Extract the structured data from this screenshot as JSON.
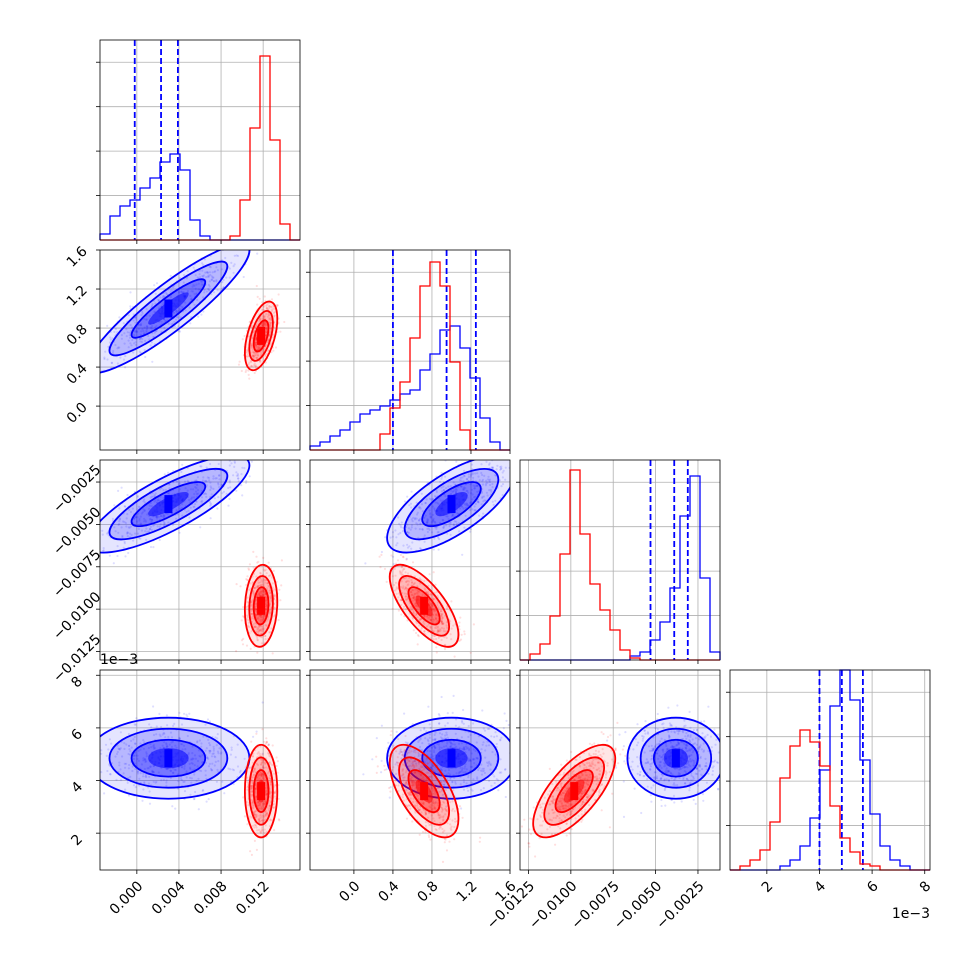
{
  "chart_data": {
    "type": "corner",
    "grid": true,
    "series": [
      {
        "color": "#0000ff",
        "quantiles": [
          [
            -0.0002,
            0.0023,
            0.0039
          ],
          [
            0.4,
            0.95,
            1.25
          ],
          [
            -0.0053,
            -0.0039,
            -0.0031
          ],
          [
            4.0,
            4.85,
            5.65
          ]
        ],
        "means": [
          0.003,
          1.0,
          -0.0038,
          4.85
        ],
        "sds": [
          0.0035,
          0.3,
          0.0013,
          0.7
        ],
        "corr": [
          [
            1,
            0.9,
            0.8,
            0
          ],
          [
            0.9,
            1,
            0.7,
            0
          ],
          [
            0.8,
            0.7,
            1,
            0
          ],
          [
            0,
            0,
            0,
            1
          ]
        ],
        "hist": [
          [
            0.03,
            0.12,
            0.17,
            0.2,
            0.26,
            0.31,
            0.39,
            0.43,
            0.35,
            0.1,
            0.02,
            0.0,
            0.0,
            0.0,
            0.0,
            0.0,
            0.0,
            0.0,
            0.0,
            0.0
          ],
          [
            0.02,
            0.04,
            0.07,
            0.1,
            0.14,
            0.18,
            0.2,
            0.22,
            0.25,
            0.28,
            0.3,
            0.4,
            0.48,
            0.6,
            0.62,
            0.51,
            0.36,
            0.16,
            0.04,
            0.0
          ],
          [
            0.0,
            0.0,
            0.0,
            0.0,
            0.0,
            0.0,
            0.0,
            0.0,
            0.0,
            0.0,
            0.0,
            0.02,
            0.04,
            0.1,
            0.19,
            0.36,
            0.72,
            0.92,
            0.41,
            0.04
          ],
          [
            0.0,
            0.0,
            0.0,
            0.0,
            0.0,
            0.02,
            0.05,
            0.12,
            0.26,
            0.5,
            0.82,
            1.0,
            0.85,
            0.55,
            0.28,
            0.12,
            0.05,
            0.02,
            0.0,
            0.0
          ]
        ]
      },
      {
        "color": "#ff0000",
        "quantiles": null,
        "means": [
          0.0118,
          0.72,
          -0.0098,
          3.6
        ],
        "sds": [
          0.0007,
          0.16,
          0.0011,
          0.8
        ],
        "corr": [
          [
            1,
            0.5,
            0.1,
            0
          ],
          [
            0.5,
            1,
            -0.7,
            -0.6
          ],
          [
            0.1,
            -0.7,
            1,
            0.7
          ],
          [
            0,
            -0.6,
            0.7,
            1
          ]
        ],
        "hist": [
          [
            0.0,
            0.0,
            0.0,
            0.0,
            0.0,
            0.0,
            0.0,
            0.0,
            0.0,
            0.0,
            0.0,
            0.0,
            0.0,
            0.02,
            0.2,
            0.56,
            0.92,
            0.5,
            0.08,
            0.0
          ],
          [
            0.0,
            0.0,
            0.0,
            0.0,
            0.0,
            0.0,
            0.0,
            0.08,
            0.21,
            0.34,
            0.56,
            0.82,
            0.94,
            0.82,
            0.44,
            0.1,
            0.0,
            0.0,
            0.0,
            0.0
          ],
          [
            0.0,
            0.03,
            0.08,
            0.22,
            0.53,
            0.95,
            0.63,
            0.38,
            0.25,
            0.15,
            0.05,
            0.01,
            0.0,
            0.0,
            0.0,
            0.0,
            0.0,
            0.0,
            0.0,
            0.0
          ],
          [
            0.0,
            0.02,
            0.05,
            0.1,
            0.24,
            0.46,
            0.62,
            0.7,
            0.64,
            0.52,
            0.32,
            0.16,
            0.09,
            0.03,
            0.02,
            0.0,
            0.0,
            0.0,
            0.0,
            0.0
          ]
        ]
      }
    ],
    "params": [
      {
        "range": [
          -0.0035,
          0.0155
        ],
        "ticks": [
          0.0,
          0.004,
          0.008,
          0.012
        ],
        "tick_labels": [
          "0.000",
          "0.004",
          "0.008",
          "0.012"
        ]
      },
      {
        "range": [
          -0.45,
          1.6
        ],
        "ticks": [
          0.0,
          0.4,
          0.8,
          1.2,
          1.6
        ],
        "tick_labels": [
          "0.0",
          "0.4",
          "0.8",
          "1.2",
          "1.6"
        ]
      },
      {
        "range": [
          -0.013,
          -0.0012
        ],
        "ticks": [
          -0.0125,
          -0.01,
          -0.0075,
          -0.005,
          -0.0025
        ],
        "tick_labels": [
          "−0.0125",
          "−0.0100",
          "−0.0075",
          "−0.0050",
          "−0.0025"
        ]
      },
      {
        "range": [
          0.6,
          8.2
        ],
        "ticks": [
          2,
          4,
          6,
          8
        ],
        "tick_labels": [
          "2",
          "4",
          "6",
          "8"
        ],
        "offset_text": "1e−3"
      }
    ]
  }
}
